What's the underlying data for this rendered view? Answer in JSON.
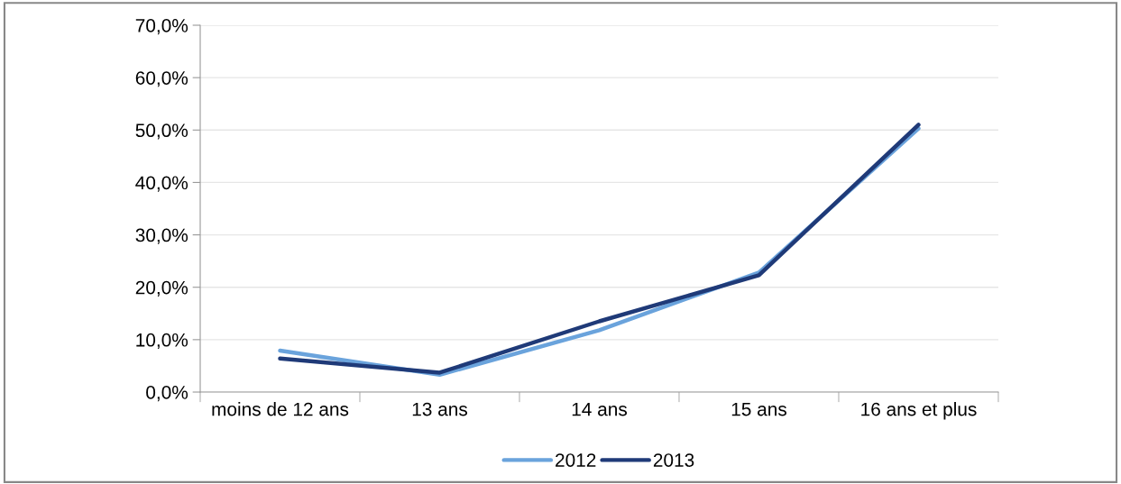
{
  "chart_data": {
    "type": "line",
    "categories": [
      "moins de 12 ans",
      "13 ans",
      "14 ans",
      "15 ans",
      "16 ans et plus"
    ],
    "series": [
      {
        "name": "2012",
        "color": "#6aa3dc",
        "values": [
          7.9,
          3.3,
          11.8,
          22.8,
          50.3
        ]
      },
      {
        "name": "2013",
        "color": "#1f3a78",
        "values": [
          6.4,
          3.7,
          13.5,
          22.3,
          51.0
        ]
      }
    ],
    "ylim": [
      0,
      70
    ],
    "yticks": [
      {
        "value": 0,
        "label": "0,0%"
      },
      {
        "value": 10,
        "label": "10,0%"
      },
      {
        "value": 20,
        "label": "20,0%"
      },
      {
        "value": 30,
        "label": "30,0%"
      },
      {
        "value": 40,
        "label": "40,0%"
      },
      {
        "value": 50,
        "label": "50,0%"
      },
      {
        "value": 60,
        "label": "60,0%"
      },
      {
        "value": 70,
        "label": "70,0%"
      }
    ],
    "grid": "y",
    "legend": "bottom",
    "marker": "none",
    "line_style": "solid"
  }
}
